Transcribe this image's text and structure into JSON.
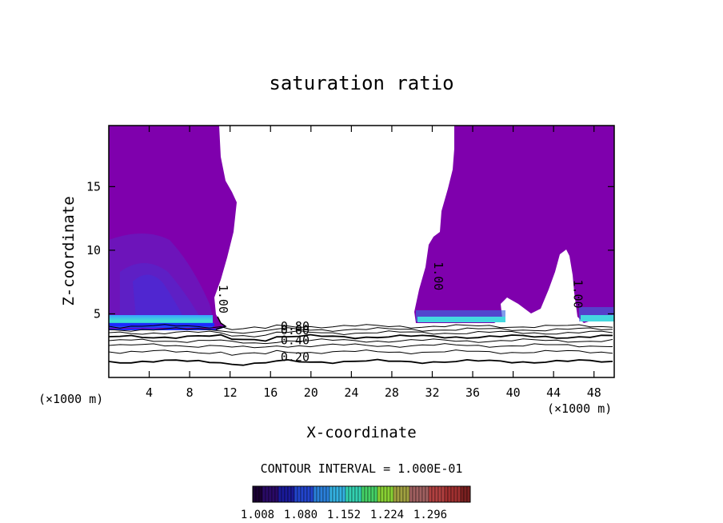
{
  "chart_data": {
    "type": "heatmap",
    "title": "saturation ratio",
    "xlabel": "X-coordinate",
    "ylabel": "Z-coordinate",
    "x_unit_left": "(×1000 m)",
    "x_unit_right": "(×1000 m)",
    "xlim": [
      0,
      50
    ],
    "ylim": [
      0,
      19.8
    ],
    "x_ticks": [
      4,
      8,
      12,
      16,
      20,
      24,
      28,
      32,
      36,
      40,
      44,
      48
    ],
    "y_ticks": [
      5,
      10,
      15
    ],
    "contour_interval_text": "CONTOUR INTERVAL = 1.000E-01",
    "contour_labels": [
      {
        "text": "0.20",
        "x": 17,
        "y": 1.3
      },
      {
        "text": "0.40",
        "x": 17,
        "y": 2.6
      },
      {
        "text": "0.60",
        "x": 17,
        "y": 3.4
      },
      {
        "text": "0.80",
        "x": 17,
        "y": 3.7
      },
      {
        "text": "1.00",
        "x": 10.9,
        "y": 7.3,
        "rotate": 90
      },
      {
        "text": "1.00",
        "x": 32.2,
        "y": 9.1,
        "rotate": 90
      },
      {
        "text": "1.00",
        "x": 46.0,
        "y": 7.7,
        "rotate": 90
      }
    ],
    "colorbar": {
      "tick_labels": [
        "1.008",
        "1.080",
        "1.152",
        "1.224",
        "1.296"
      ],
      "colors": [
        "#1a0033",
        "#2a0a66",
        "#1a1a99",
        "#2244cc",
        "#2a7fd9",
        "#33b0e0",
        "#33d0b0",
        "#44d066",
        "#88d033",
        "#a0a040",
        "#a06060",
        "#b04040",
        "#a03030",
        "#7a2020"
      ]
    },
    "fill_color": "#7f00ad"
  }
}
